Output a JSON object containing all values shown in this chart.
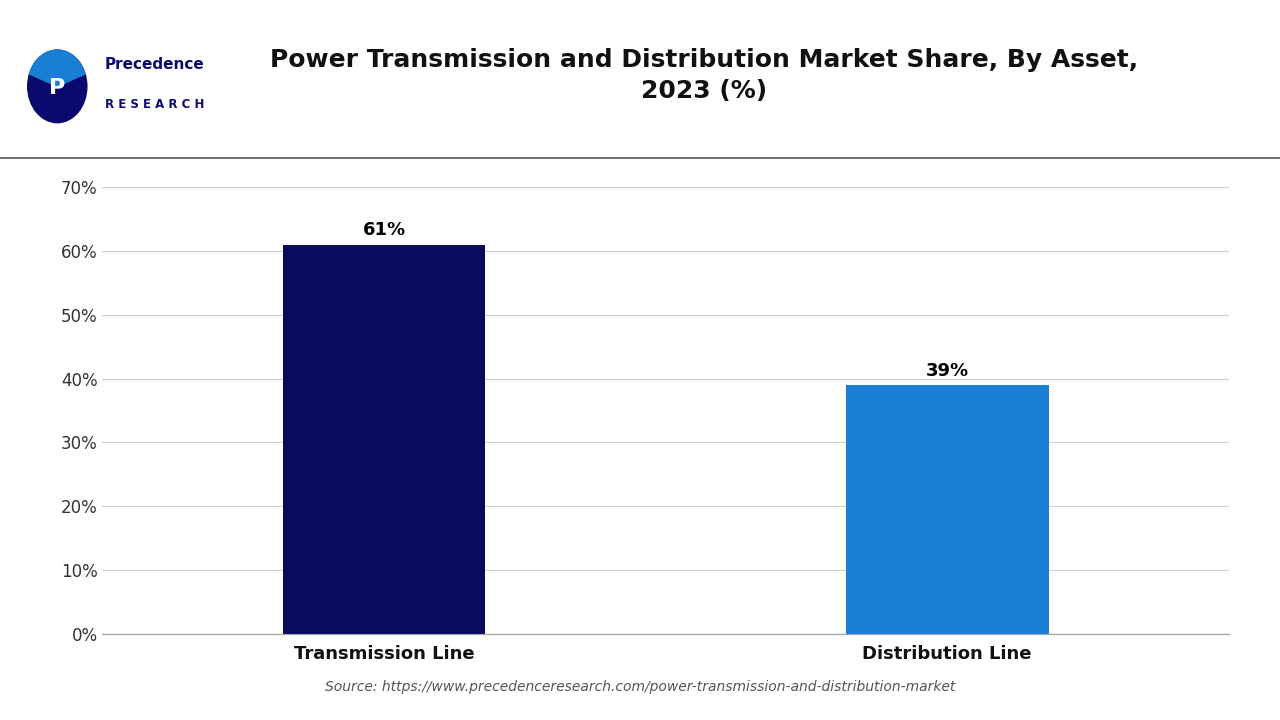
{
  "title": "Power Transmission and Distribution Market Share, By Asset,\n2023 (%)",
  "categories": [
    "Transmission Line",
    "Distribution Line"
  ],
  "values": [
    61,
    39
  ],
  "bar_colors": [
    "#0a0a5e",
    "#1a7fd4"
  ],
  "ylim": [
    0,
    70
  ],
  "yticks": [
    0,
    10,
    20,
    30,
    40,
    50,
    60,
    70
  ],
  "ytick_labels": [
    "0%",
    "10%",
    "20%",
    "30%",
    "40%",
    "50%",
    "60%",
    "70%"
  ],
  "bar_labels": [
    "61%",
    "39%"
  ],
  "source_text": "Source: https://www.precedenceresearch.com/power-transmission-and-distribution-market",
  "background_color": "#ffffff",
  "grid_color": "#d0d0d0",
  "title_fontsize": 18,
  "label_fontsize": 13,
  "bar_label_fontsize": 13,
  "source_fontsize": 10,
  "tick_fontsize": 12,
  "logo_color": "#0a0a6e",
  "logo_accent_color": "#1a7fd4"
}
